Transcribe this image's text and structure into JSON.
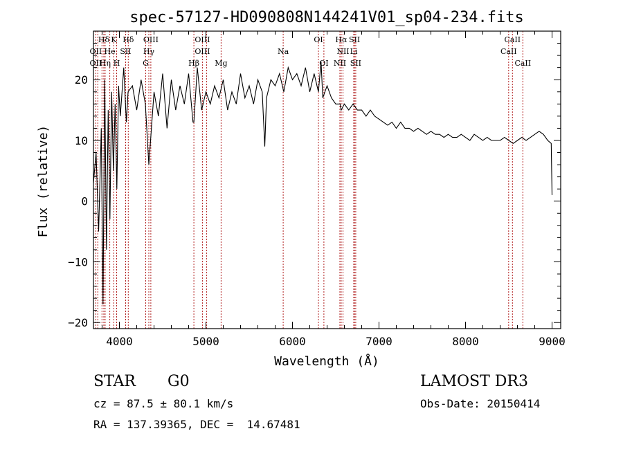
{
  "chart_data": {
    "type": "line",
    "title": "spec-57127-HD090808N144241V01_sp04-234.fits",
    "xlabel": "Wavelength (Å)",
    "ylabel": "Flux (relative)",
    "xlim": [
      3700,
      9100
    ],
    "ylim": [
      -21,
      28
    ],
    "x_ticks": [
      4000,
      5000,
      6000,
      7000,
      8000,
      9000
    ],
    "x_tick_labels": [
      "4000",
      "5000",
      "6000",
      "7000",
      "8000",
      "9000"
    ],
    "y_ticks": [
      -20,
      -10,
      0,
      10,
      20
    ],
    "y_tick_labels": [
      "−20",
      "−10",
      "0",
      "10",
      "20"
    ],
    "series": [
      {
        "name": "spectrum",
        "x": [
          3700,
          3730,
          3760,
          3790,
          3810,
          3830,
          3850,
          3870,
          3890,
          3910,
          3930,
          3950,
          3970,
          3990,
          4010,
          4050,
          4080,
          4100,
          4150,
          4200,
          4250,
          4300,
          4340,
          4400,
          4450,
          4500,
          4550,
          4600,
          4650,
          4700,
          4750,
          4800,
          4850,
          4861,
          4900,
          4950,
          5000,
          5050,
          5100,
          5150,
          5200,
          5250,
          5300,
          5350,
          5400,
          5450,
          5500,
          5550,
          5600,
          5650,
          5680,
          5700,
          5750,
          5800,
          5850,
          5900,
          5950,
          6000,
          6050,
          6100,
          6150,
          6200,
          6250,
          6300,
          6330,
          6350,
          6400,
          6450,
          6500,
          6550,
          6563,
          6600,
          6650,
          6700,
          6750,
          6800,
          6850,
          6900,
          6950,
          7000,
          7050,
          7100,
          7150,
          7200,
          7250,
          7300,
          7350,
          7400,
          7450,
          7500,
          7550,
          7600,
          7650,
          7700,
          7750,
          7800,
          7850,
          7900,
          7950,
          8000,
          8050,
          8100,
          8150,
          8200,
          8250,
          8300,
          8350,
          8400,
          8450,
          8500,
          8550,
          8600,
          8650,
          8700,
          8750,
          8800,
          8850,
          8900,
          8950,
          8990,
          9000
        ],
        "y": [
          3,
          8,
          -5,
          12,
          -17,
          20,
          -8,
          15,
          -3,
          18,
          5,
          16,
          2,
          19,
          14,
          22,
          13,
          18,
          19,
          15,
          20,
          16,
          6,
          18,
          14,
          21,
          12,
          20,
          15,
          19,
          16,
          21,
          13,
          13,
          22,
          15,
          18,
          16,
          19,
          17,
          20,
          15,
          18,
          16,
          21,
          17,
          19,
          16,
          20,
          18,
          9,
          17,
          20,
          19,
          21,
          18,
          22,
          20,
          21,
          19,
          22,
          18,
          21,
          18,
          23,
          17,
          19,
          17,
          16,
          16,
          15,
          16,
          15,
          16,
          15,
          15,
          14,
          15,
          14,
          13.5,
          13,
          12.5,
          13,
          12,
          13,
          12,
          12,
          11.5,
          12,
          11.5,
          11,
          11.5,
          11,
          11,
          10.5,
          11,
          10.5,
          10.5,
          11,
          10.5,
          10,
          11,
          10.5,
          10,
          10.5,
          10,
          10,
          10,
          10.5,
          10,
          9.5,
          10,
          10.5,
          10,
          10.5,
          11,
          11.5,
          11,
          10,
          9.5,
          1
        ]
      }
    ],
    "line_labels": [
      {
        "label": "Hδ",
        "x": 3820,
        "row": 1
      },
      {
        "label": "K",
        "x": 3934,
        "row": 1
      },
      {
        "label": "Hδ",
        "x": 4102,
        "row": 1
      },
      {
        "label": "OIII",
        "x": 4363,
        "row": 1
      },
      {
        "label": "OIII",
        "x": 4959,
        "row": 1
      },
      {
        "label": "OI",
        "x": 6300,
        "row": 1
      },
      {
        "label": "Hα",
        "x": 6563,
        "row": 1
      },
      {
        "label": "SII",
        "x": 6717,
        "row": 1
      },
      {
        "label": "CaII",
        "x": 8542,
        "row": 1
      },
      {
        "label": "OII",
        "x": 3727,
        "row": 2
      },
      {
        "label": "He",
        "x": 3889,
        "row": 2
      },
      {
        "label": "SII",
        "x": 4072,
        "row": 2
      },
      {
        "label": "Hγ",
        "x": 4340,
        "row": 2
      },
      {
        "label": "OIII",
        "x": 4959,
        "row": 2
      },
      {
        "label": "Na",
        "x": 5893,
        "row": 2
      },
      {
        "label": "NII",
        "x": 6584,
        "row": 2
      },
      {
        "label": "Li",
        "x": 6708,
        "row": 2
      },
      {
        "label": "CaII",
        "x": 8498,
        "row": 2
      },
      {
        "label": "OII",
        "x": 3727,
        "row": 3
      },
      {
        "label": "Hη",
        "x": 3835,
        "row": 3
      },
      {
        "label": "H",
        "x": 3968,
        "row": 3
      },
      {
        "label": "G",
        "x": 4304,
        "row": 3
      },
      {
        "label": "Hβ",
        "x": 4861,
        "row": 3
      },
      {
        "label": "Mg",
        "x": 5175,
        "row": 3
      },
      {
        "label": "OI",
        "x": 6363,
        "row": 3
      },
      {
        "label": "NII",
        "x": 6548,
        "row": 3
      },
      {
        "label": "SII",
        "x": 6731,
        "row": 3
      },
      {
        "label": "CaII",
        "x": 8662,
        "row": 3
      }
    ],
    "line_markers": [
      3727,
      3750,
      3798,
      3820,
      3835,
      3889,
      3934,
      3968,
      4072,
      4102,
      4304,
      4340,
      4363,
      4861,
      4959,
      5007,
      5175,
      5893,
      6300,
      6363,
      6548,
      6563,
      6584,
      6708,
      6717,
      6731,
      8498,
      8542,
      8662
    ]
  },
  "info": {
    "object_class": "STAR",
    "subclass": "G0",
    "survey": "LAMOST DR3",
    "cz": "cz = 87.5 ± 80.1 km/s",
    "obs_date": "Obs-Date: 20150414",
    "coords": "RA = 137.39365, DEC =  14.67481"
  },
  "colors": {
    "spectrum": "#000000",
    "markers": "#b22222",
    "axes": "#000000",
    "background": "#ffffff"
  }
}
